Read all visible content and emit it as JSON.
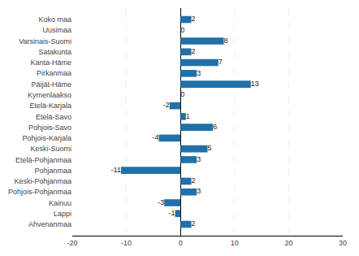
{
  "chart_data": {
    "type": "bar",
    "orientation": "horizontal",
    "categories": [
      "Ahvenanmaa",
      "Lappi",
      "Kainuu",
      "Pohjois-Pohjanmaa",
      "Keski-Pohjanmaa",
      "Pohjanmaa",
      "Etelä-Pohjanmaa",
      "Keski-Suomi",
      "Pohjois-Karjala",
      "Pohjois-Savo",
      "Etelä-Savo",
      "Etelä-Karjala",
      "Kymenlaakso",
      "Päijät-Häme",
      "Pirkanmaa",
      "Kanta-Häme",
      "Satakunta",
      "Varsinais-Suomi",
      "Uusimaa",
      "Koko maa"
    ],
    "values": [
      2,
      -1,
      -3,
      3,
      2,
      -11,
      3,
      5,
      -4,
      6,
      1,
      -2,
      0,
      13,
      3,
      7,
      2,
      8,
      0,
      2
    ],
    "color": "#2170a8",
    "xlim": [
      -20,
      30
    ],
    "xticks": [
      -20,
      -10,
      0,
      10,
      20,
      30
    ],
    "grid": true,
    "data_labels": true
  }
}
